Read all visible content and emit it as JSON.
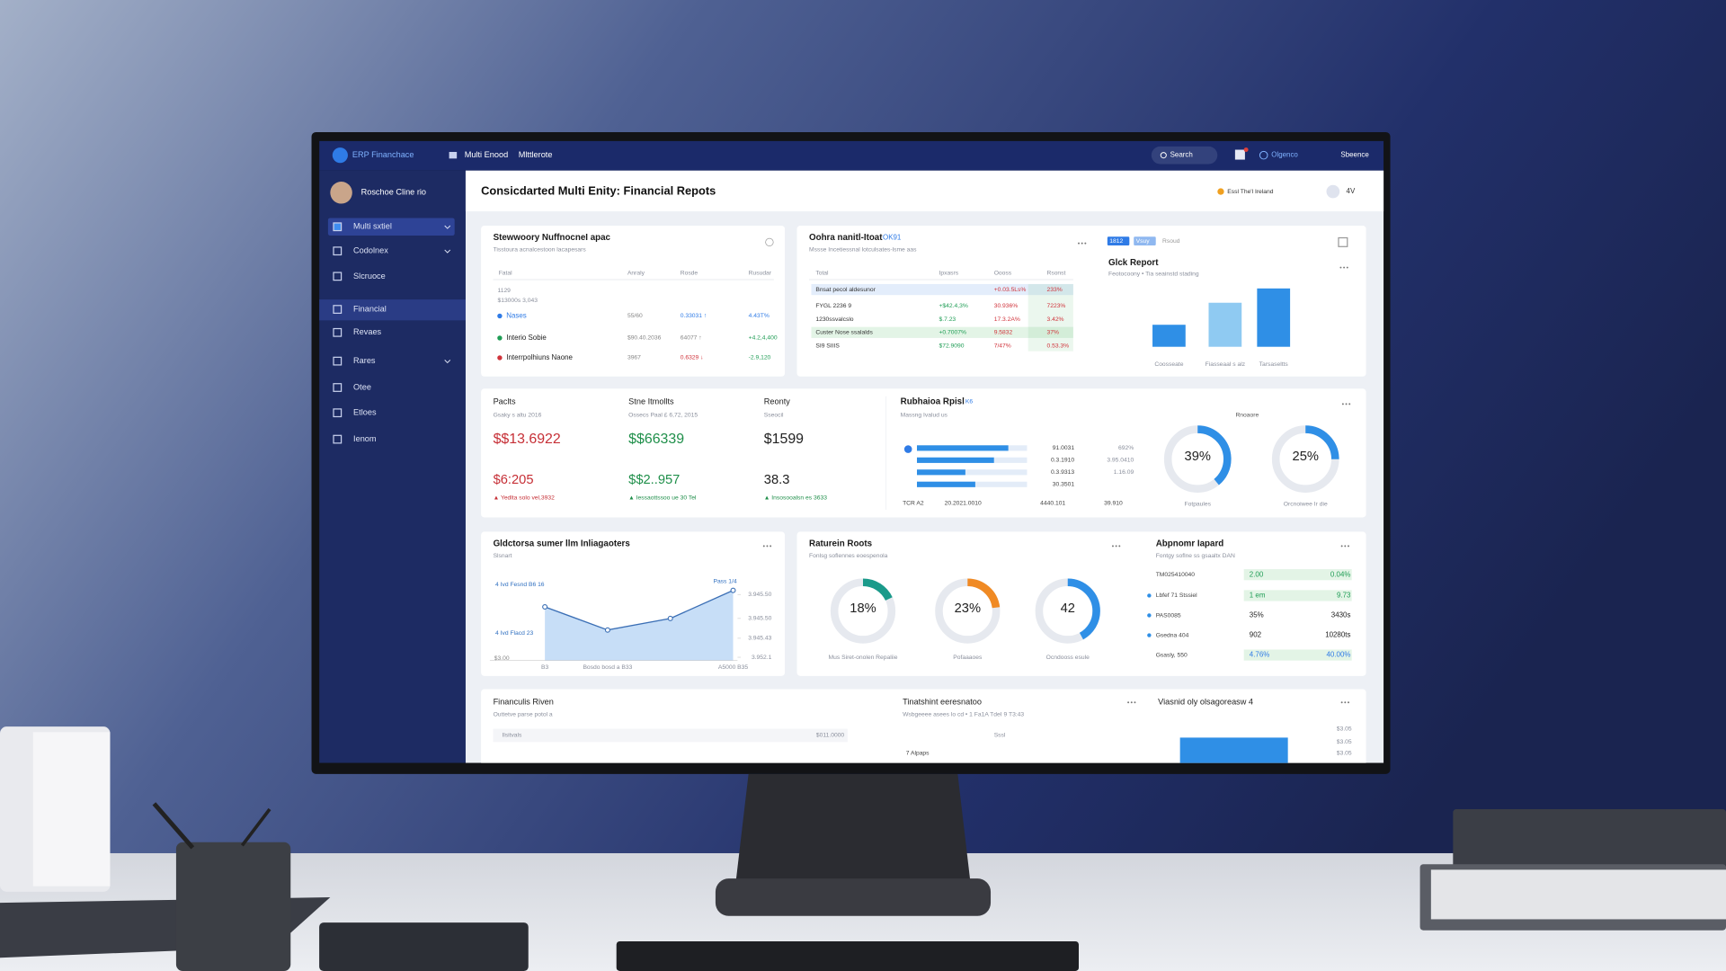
{
  "topbar": {
    "app": "ERP Financhace",
    "tabs": [
      "Multi Enood",
      "Mlttlerote"
    ],
    "search": "Search",
    "org": "Olgenco",
    "user": "Sbeence"
  },
  "sidebar": {
    "user": "Roschoe Cline rio",
    "items": [
      "Multi sxtiel",
      "Codolnex",
      "Slcruoce",
      "Financial",
      "Revaes",
      "Rares",
      "Otee",
      "Etloes",
      "Ienom"
    ]
  },
  "header": {
    "title": "Consicdarted Multi Enity: Financial Repots",
    "entity": "Essl The'l Ireland",
    "user": "4V"
  },
  "summary": {
    "title": "Stewwoory NuffnocneI apac",
    "subtitle": "Tisstoura acnalcestoon lacapesars",
    "columns": [
      "Fatal",
      "Anraly",
      "Rosde",
      "Rusudar"
    ],
    "notes": [
      "1129",
      "$13000s 3,043"
    ],
    "rows": [
      [
        "Nases",
        "55/60",
        "0.33031 ↑",
        "4.43T%"
      ],
      [
        "Interio Sobie",
        "$90.40.2036",
        "64077 ↑",
        "+4.2,4,400"
      ],
      [
        "Interrpolhiuns Naone",
        "3967",
        "0.6329 ↓",
        "-2.9,120"
      ]
    ]
  },
  "consolidation": {
    "title": "Oohra nanitl-Itoat",
    "tag": "OK91",
    "subtitle": "Mssse Incetiessnal lotculsates-lsme aas",
    "columns": [
      "Total",
      "Ipxasrs",
      "Oooss",
      "Rsonst"
    ],
    "rows": [
      [
        "Bnsat pecol aldesunor",
        "",
        "+0.03.5Ls%",
        "233%"
      ],
      [
        "FYGL 2236 9",
        "+$42.4,3%",
        "30.936%",
        "7223%"
      ],
      [
        "1230ssvalcslo",
        "$.7.23",
        "17.3.2A%",
        "3.42%"
      ],
      [
        "Custer Nose ssalalds",
        "+0.7007%",
        "9.5832",
        "37%"
      ],
      [
        "SI9 SIIIS",
        "$72.9090",
        "7/47%",
        "0.53.3%"
      ]
    ],
    "report_tags": [
      "1812",
      "Vsuy",
      "Rsoud"
    ]
  },
  "kpis": [
    {
      "label": "Paclts",
      "sub": "Gsaky s altu 2016",
      "value": "$$13.6922",
      "value2": "$6:205",
      "foot": "▲ Yedlta solo vel,3932"
    },
    {
      "label": "Stne Itmollts",
      "sub": "Ossecs Paal £ 6,72, 2015",
      "value": "$$66339",
      "value2": "$$2..957",
      "foot": "▲ Iessaottssoo ue 30 Tel"
    },
    {
      "label": "Reonty",
      "sub": "Sseocil",
      "value": "$1599",
      "value2": "38.3",
      "foot": "▲ Insosooalsn es 3633"
    }
  ],
  "ratios_heading": "Rnoaore",
  "returns": {
    "title": "Raturein Roots",
    "subtitle": "Fonlsg soflennes eoespenola"
  },
  "impact": {
    "title": "Abpnomr Iapard",
    "subtitle": "Fontgy soflne ss gsaaltx DAN",
    "rows": [
      [
        "TM025410040",
        "2.00",
        "0.04%"
      ],
      [
        "Lbfef 71 Stssiel",
        "1 em",
        "9.73"
      ],
      [
        "PAS0085",
        "35%",
        "3430s"
      ],
      [
        "Gsedna 404",
        "902",
        "10280ts"
      ],
      [
        "Gsasly, 550",
        "4.76%",
        "40.00%"
      ]
    ]
  },
  "bottom": {
    "title": "Financulis Riven",
    "subtitle": "Outtetve parse potol a",
    "row": [
      "Ilsitvals",
      "$011.0000"
    ],
    "mid_title": "Tinatshint eeresnatoo",
    "mid_subtitle": "Wsbgeeee asees lo cd • 1 Fa1A TdeI 9 T3:43",
    "mid_items": [
      "Sssl",
      "7 Alpaps"
    ],
    "right_title": "Viasnid oly olsagoreasw 4",
    "right_labels": [
      "$3.05",
      "$3.05",
      "$3.05"
    ]
  },
  "chart_data": [
    {
      "type": "bar",
      "title": "Glck Report",
      "subtitle": "Feotocoony • Tia seainstd stading",
      "categories": [
        "Coosseate",
        "Fiasseaal s alz",
        "Tarsaseltts"
      ],
      "values": [
        20,
        40,
        53
      ],
      "colors": [
        "#2f8fe6",
        "#8fcaf2",
        "#2f8fe6"
      ],
      "ylim": [
        0,
        60
      ]
    },
    {
      "type": "line",
      "title": "Gldctorsa sumer llm Inliagaoters",
      "subtitle": "Slsnart",
      "categories": [
        "B3",
        "Bosdo bosd a B33",
        null,
        "A5000 B35"
      ],
      "values": [
        65,
        37,
        51,
        85
      ],
      "color": "#3b6fb5",
      "fill": "#b9d6f5",
      "ylim": [
        0,
        100
      ],
      "yticks": [
        {
          "value": 80,
          "label": "3.945.50"
        },
        {
          "value": 51,
          "label": "3.945.50"
        },
        {
          "value": 27,
          "label": "3.945.43"
        },
        {
          "value": 4,
          "label": "3.952.1"
        }
      ],
      "annotations": [
        "4 Ivd Fesnd B6 16",
        "4 Ivd Flacd 23",
        "Pass 1/4",
        "$3.00"
      ]
    },
    {
      "type": "hbar",
      "title": "Rubhaioa Rpisl",
      "tag": "K6",
      "subtitle": "Massng Ivalud us",
      "values": [
        83,
        70,
        44,
        53
      ],
      "color": "#2f8fe6",
      "xlim": [
        0,
        100
      ],
      "col1": [
        "91.0031",
        "0.3.1910",
        "0.3.9313",
        "30.3501"
      ],
      "col2": [
        "692%",
        "3.95.0410",
        "1.16.09"
      ],
      "footer": [
        "TCR A2",
        "20.2021.0010",
        "4440.101",
        "39.910"
      ]
    },
    {
      "type": "donut",
      "values": [
        39
      ],
      "value_labels": [
        "39%"
      ],
      "caption": "Fotpaules",
      "color": "#2f8fe6"
    },
    {
      "type": "donut",
      "values": [
        25
      ],
      "value_labels": [
        "25%"
      ],
      "caption": "Orcnoiwee Ir die",
      "color": "#2f8fe6"
    },
    {
      "type": "donut",
      "values": [
        18
      ],
      "value_labels": [
        "18%"
      ],
      "caption": "Mus Siret-onolen Repaliie",
      "color": "#1a9a8a"
    },
    {
      "type": "donut",
      "values": [
        23
      ],
      "value_labels": [
        "23%"
      ],
      "caption": "Pofaaaoes",
      "color": "#f08a24"
    },
    {
      "type": "donut",
      "values": [
        42
      ],
      "caption": "Ocndooss esule",
      "color": "#2f8fe6"
    }
  ]
}
